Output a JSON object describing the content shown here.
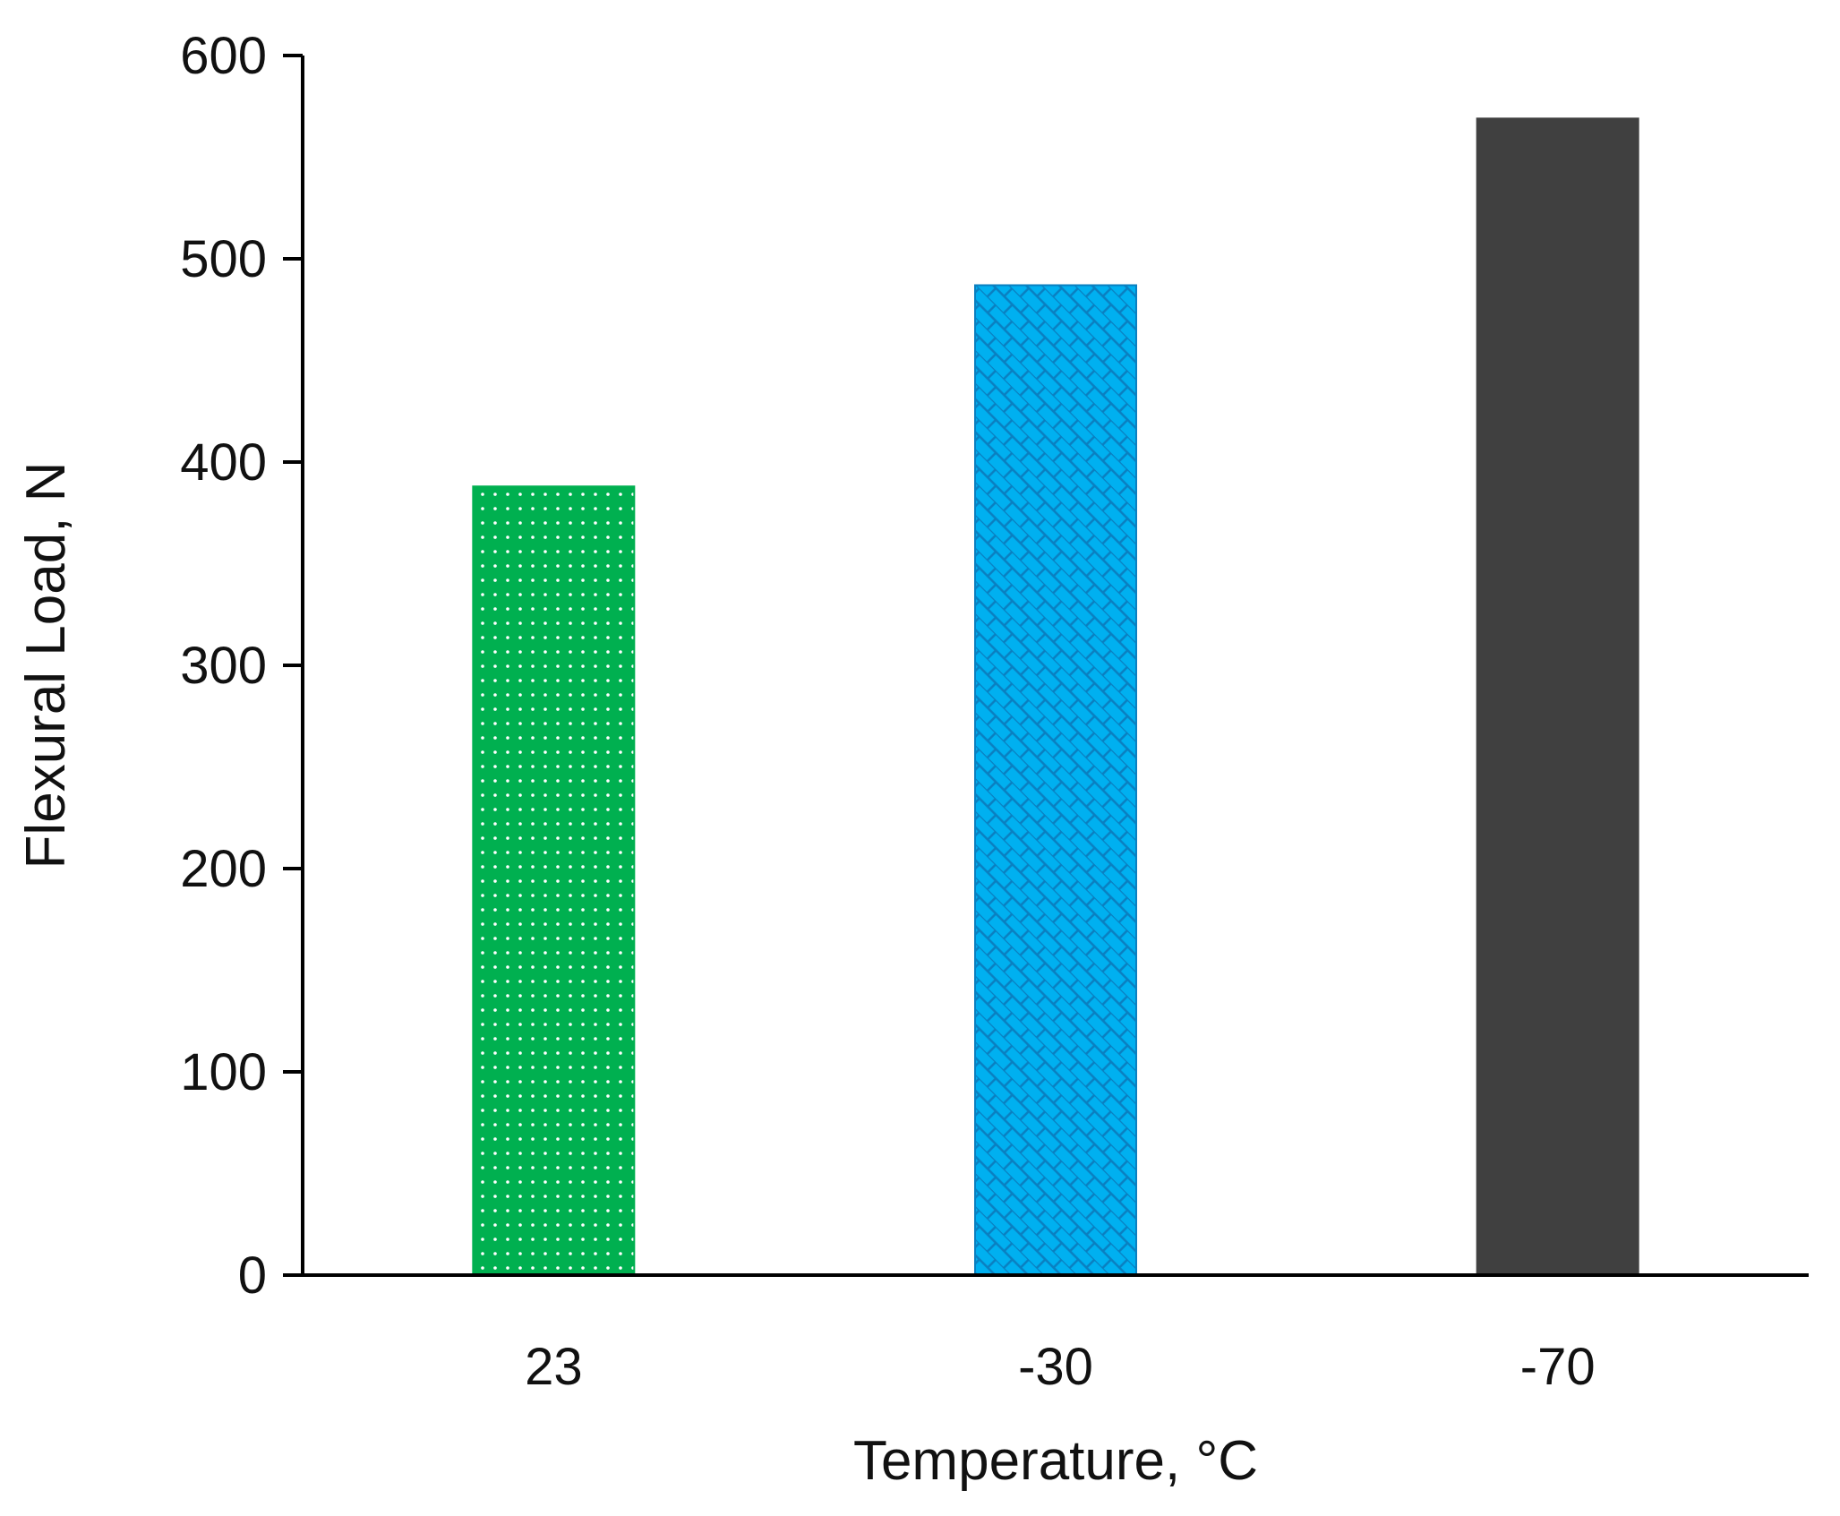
{
  "chart_data": {
    "type": "bar",
    "title": "",
    "xlabel": "Temperature, °C",
    "ylabel": "Flexural Load, N",
    "categories": [
      "23",
      "-30",
      "-70"
    ],
    "values": [
      388,
      487,
      569
    ],
    "ylim": [
      0,
      600
    ],
    "yticks": [
      "0",
      "100",
      "200",
      "300",
      "400",
      "500",
      "600"
    ],
    "grid": false,
    "legend": "none",
    "bar_colors": [
      "#00b050",
      "#00b0f0",
      "#404040"
    ],
    "bar_patterns": [
      "dotted",
      "crosshatch",
      "solid"
    ]
  }
}
